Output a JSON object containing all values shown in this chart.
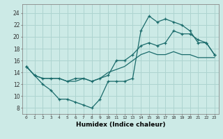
{
  "xlabel": "Humidex (Indice chaleur)",
  "ylabel": "",
  "bg_color": "#cceae6",
  "grid_color": "#aed4d0",
  "line_color": "#1a6b6b",
  "xlim": [
    -0.5,
    23.5
  ],
  "ylim": [
    7,
    25.5
  ],
  "xticks": [
    0,
    1,
    2,
    3,
    4,
    5,
    6,
    7,
    8,
    9,
    10,
    11,
    12,
    13,
    14,
    15,
    16,
    17,
    18,
    19,
    20,
    21,
    22,
    23
  ],
  "yticks": [
    8,
    10,
    12,
    14,
    16,
    18,
    20,
    22,
    24
  ],
  "line1_x": [
    0,
    1,
    2,
    3,
    4,
    5,
    6,
    7,
    8,
    9,
    10,
    11,
    12,
    13,
    14,
    15,
    16,
    17,
    18,
    19,
    20,
    21,
    22,
    23
  ],
  "line1_y": [
    15,
    13.5,
    12,
    11,
    9.5,
    9.5,
    9,
    8.5,
    8,
    9.5,
    12.5,
    12.5,
    12.5,
    13,
    21,
    23.5,
    22.5,
    23,
    22.5,
    22,
    21,
    19,
    19,
    17
  ],
  "line2_x": [
    0,
    1,
    2,
    3,
    4,
    5,
    6,
    7,
    8,
    9,
    10,
    11,
    12,
    13,
    14,
    15,
    16,
    17,
    18,
    19,
    20,
    21,
    22,
    23
  ],
  "line2_y": [
    15,
    13.5,
    13,
    13,
    13,
    12.5,
    13,
    13,
    12.5,
    13,
    13.5,
    16,
    16,
    17,
    18.5,
    19,
    18.5,
    19,
    21,
    20.5,
    20.5,
    19.5,
    19,
    17
  ],
  "line3_x": [
    0,
    1,
    2,
    3,
    4,
    5,
    6,
    7,
    8,
    9,
    10,
    11,
    12,
    13,
    14,
    15,
    16,
    17,
    18,
    19,
    20,
    21,
    22,
    23
  ],
  "line3_y": [
    15,
    13.5,
    13,
    13,
    13,
    12.5,
    12.5,
    13,
    12.5,
    13,
    14,
    14.5,
    15,
    16,
    17,
    17.5,
    17,
    17,
    17.5,
    17,
    17,
    16.5,
    16.5,
    16.5
  ]
}
